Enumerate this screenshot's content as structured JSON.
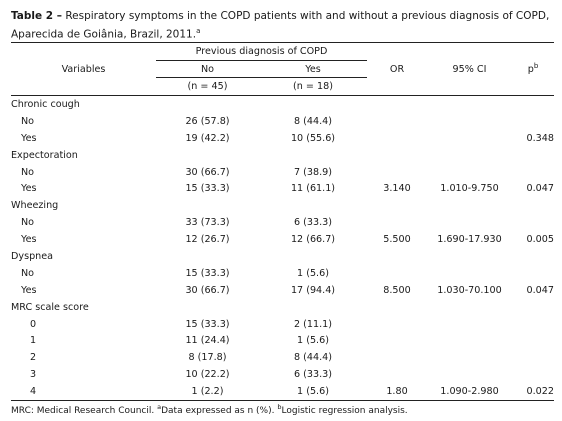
{
  "caption": {
    "label": "Table 2 –",
    "text": "Respiratory symptoms in the COPD patients with and without a previous diagnosis of COPD, Aparecida de Goiânia, Brazil, 2011.",
    "mark": "a"
  },
  "headers": {
    "variables": "Variables",
    "group": "Previous diagnosis of COPD",
    "no": "No",
    "yes": "Yes",
    "no_n": "(n = 45)",
    "yes_n": "(n = 18)",
    "or": "OR",
    "ci": "95% CI",
    "p": "p",
    "p_mark": "b"
  },
  "rows": [
    {
      "label": "Chronic cough",
      "kind": "section",
      "no": "",
      "yes": "",
      "or": "",
      "ci": "",
      "p": ""
    },
    {
      "label": "No",
      "kind": "sub",
      "no": "26 (57.8)",
      "yes": "8 (44.4)",
      "or": "",
      "ci": "",
      "p": ""
    },
    {
      "label": "Yes",
      "kind": "sub",
      "no": "19 (42.2)",
      "yes": "10 (55.6)",
      "or": "",
      "ci": "",
      "p": "0.348"
    },
    {
      "label": "Expectoration",
      "kind": "section",
      "no": "",
      "yes": "",
      "or": "",
      "ci": "",
      "p": ""
    },
    {
      "label": "No",
      "kind": "sub",
      "no": "30 (66.7)",
      "yes": "7 (38.9)",
      "or": "",
      "ci": "",
      "p": ""
    },
    {
      "label": "Yes",
      "kind": "sub",
      "no": "15 (33.3)",
      "yes": "11 (61.1)",
      "or": "3.140",
      "ci": "1.010-9.750",
      "p": "0.047"
    },
    {
      "label": "Wheezing",
      "kind": "section",
      "no": "",
      "yes": "",
      "or": "",
      "ci": "",
      "p": ""
    },
    {
      "label": "No",
      "kind": "sub",
      "no": "33 (73.3)",
      "yes": "6 (33.3)",
      "or": "",
      "ci": "",
      "p": ""
    },
    {
      "label": "Yes",
      "kind": "sub",
      "no": "12 (26.7)",
      "yes": "12 (66.7)",
      "or": "5.500",
      "ci": "1.690-17.930",
      "p": "0.005"
    },
    {
      "label": "Dyspnea",
      "kind": "section",
      "no": "",
      "yes": "",
      "or": "",
      "ci": "",
      "p": ""
    },
    {
      "label": "No",
      "kind": "sub",
      "no": "15 (33.3)",
      "yes": "1 (5.6)",
      "or": "",
      "ci": "",
      "p": ""
    },
    {
      "label": "Yes",
      "kind": "sub",
      "no": "30 (66.7)",
      "yes": "17 (94.4)",
      "or": "8.500",
      "ci": "1.030-70.100",
      "p": "0.047"
    },
    {
      "label": "MRC scale score",
      "kind": "section",
      "no": "",
      "yes": "",
      "or": "",
      "ci": "",
      "p": ""
    },
    {
      "label": "0",
      "kind": "num",
      "no": "15 (33.3)",
      "yes": "2 (11.1)",
      "or": "",
      "ci": "",
      "p": ""
    },
    {
      "label": "1",
      "kind": "num",
      "no": "11 (24.4)",
      "yes": "1 (5.6)",
      "or": "",
      "ci": "",
      "p": ""
    },
    {
      "label": "2",
      "kind": "num",
      "no": "8 (17.8)",
      "yes": "8 (44.4)",
      "or": "",
      "ci": "",
      "p": ""
    },
    {
      "label": "3",
      "kind": "num",
      "no": "10 (22.2)",
      "yes": "6 (33.3)",
      "or": "",
      "ci": "",
      "p": ""
    },
    {
      "label": "4",
      "kind": "num",
      "no": "1 (2.2)",
      "yes": "1 (5.6)",
      "or": "1.80",
      "ci": "1.090-2.980",
      "p": "0.022"
    }
  ],
  "footnote": {
    "text1": "MRC: Medical Research Council.",
    "mark_a": "a",
    "text2": "Data expressed as n (%).",
    "mark_b": "b",
    "text3": "Logistic regression analysis."
  }
}
